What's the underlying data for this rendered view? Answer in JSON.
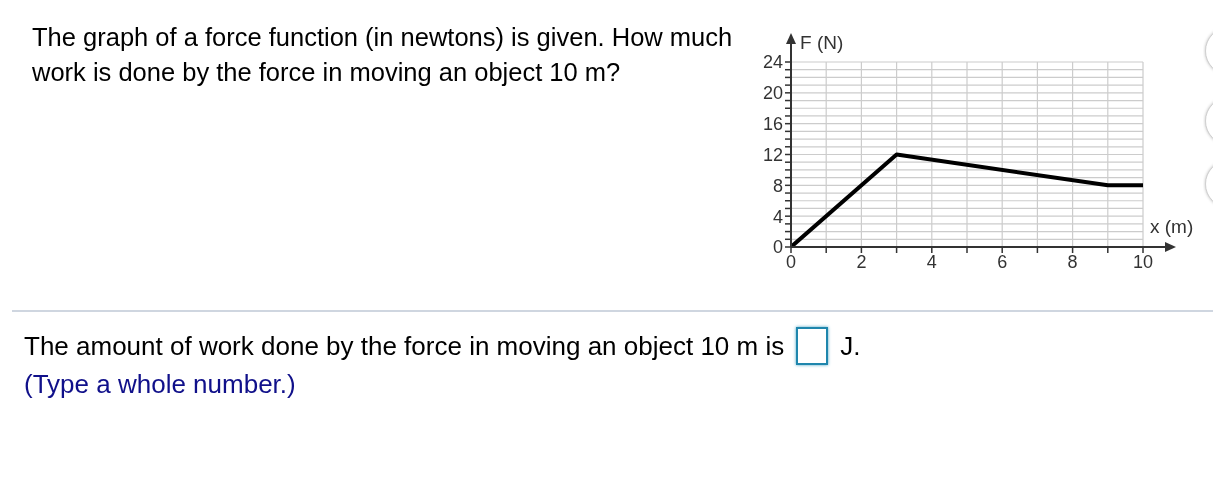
{
  "chart_data": {
    "type": "line",
    "title": "The graph of a force function (in newtons) is given. How much work is done by the force in moving an object 10 m?",
    "xlabel": "x (m)",
    "ylabel": "F (N)",
    "annotations": [
      "The amount of work done by the force in moving an object 10 m is",
      "J.",
      "(Type a whole number.)"
    ],
    "x": [
      0,
      3,
      9,
      10
    ],
    "values": [
      0,
      12,
      8,
      8
    ],
    "color": "#000000",
    "xlim": [
      0,
      10
    ],
    "ylim": [
      0,
      24
    ],
    "xticks": [
      0,
      {
        "value": 1,
        "label": null
      },
      2,
      {
        "value": 3,
        "label": null
      },
      4,
      {
        "value": 5,
        "label": null
      },
      6,
      {
        "value": 7,
        "label": null
      },
      8,
      {
        "value": 9,
        "label": null
      },
      10
    ],
    "yticks": [
      0,
      {
        "value": 1,
        "label": null
      },
      {
        "value": 2,
        "label": null
      },
      {
        "value": 3,
        "label": null
      },
      4,
      {
        "value": 5,
        "label": null
      },
      {
        "value": 6,
        "label": null
      },
      {
        "value": 7,
        "label": null
      },
      8,
      {
        "value": 9,
        "label": null
      },
      {
        "value": 10,
        "label": null
      },
      {
        "value": 11,
        "label": null
      },
      12,
      {
        "value": 13,
        "label": null
      },
      {
        "value": 14,
        "label": null
      },
      {
        "value": 15,
        "label": null
      },
      16,
      {
        "value": 17,
        "label": null
      },
      {
        "value": 18,
        "label": null
      },
      {
        "value": 19,
        "label": null
      },
      20,
      {
        "value": 21,
        "label": null
      },
      {
        "value": 22,
        "label": null
      },
      {
        "value": 23,
        "label": null
      },
      24
    ],
    "grid": true,
    "marker": "none",
    "line_style": "solid"
  }
}
